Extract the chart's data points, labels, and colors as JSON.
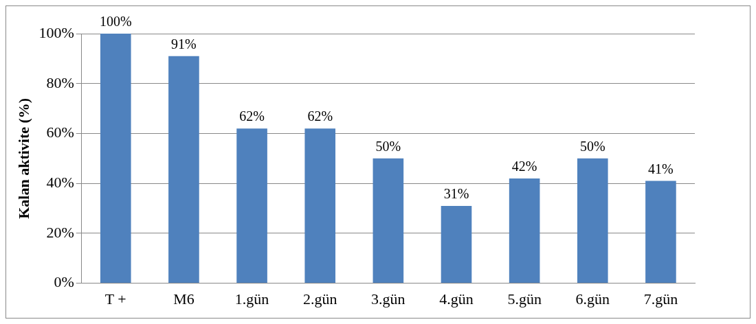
{
  "chart_data": {
    "type": "bar",
    "ylabel": "Kalan aktivite (%)",
    "categories": [
      "T +",
      "M6",
      "1.gün",
      "2.gün",
      "3.gün",
      "4.gün",
      "5.gün",
      "6.gün",
      "7.gün"
    ],
    "values": [
      100,
      91,
      62,
      62,
      50,
      31,
      42,
      50,
      41
    ],
    "value_labels": [
      "100%",
      "91%",
      "62%",
      "62%",
      "50%",
      "31%",
      "42%",
      "50%",
      "41%"
    ],
    "color": "#4f81bd",
    "ylim": [
      0,
      100
    ],
    "yticks": [
      {
        "value": 0,
        "label": "0%"
      },
      {
        "value": 20,
        "label": "20%"
      },
      {
        "value": 40,
        "label": "40%"
      },
      {
        "value": 60,
        "label": "60%"
      },
      {
        "value": 80,
        "label": "80%"
      },
      {
        "value": 100,
        "label": "100%"
      }
    ],
    "grid": "y",
    "legend": false
  }
}
